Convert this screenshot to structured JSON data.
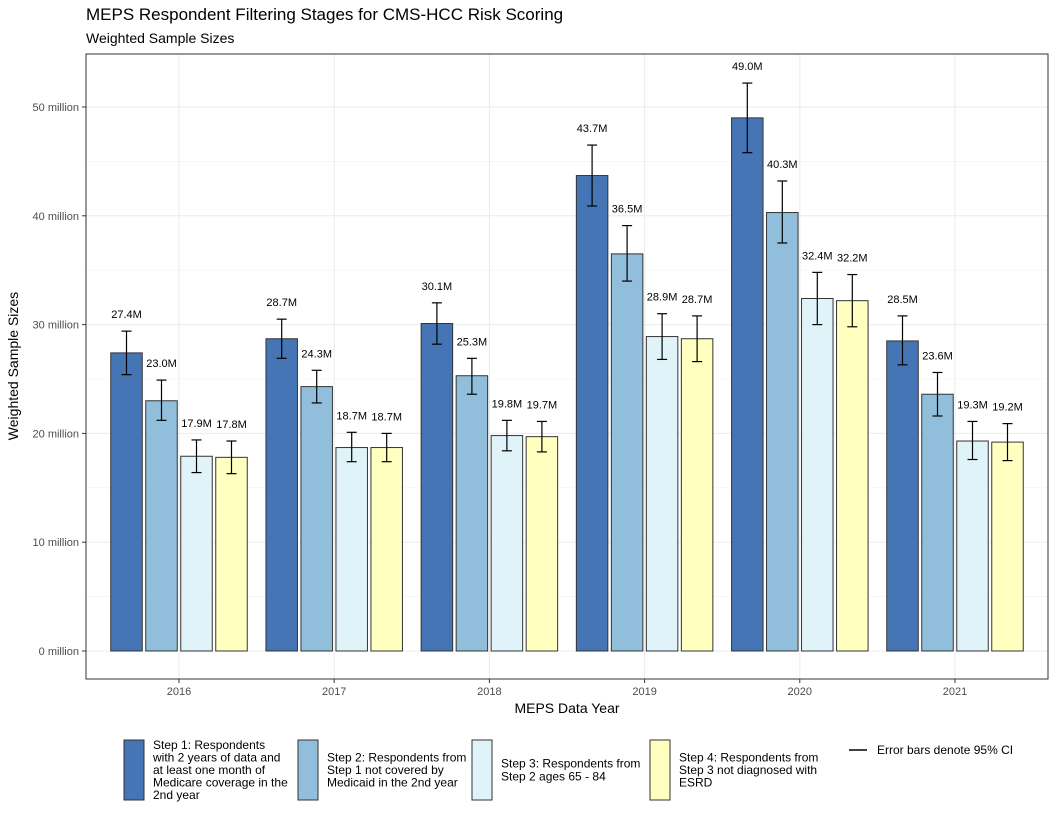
{
  "chart_data": {
    "type": "bar",
    "title": "MEPS Respondent Filtering Stages for CMS-HCC Risk Scoring",
    "subtitle": "Weighted Sample Sizes",
    "xlabel": "MEPS Data Year",
    "ylabel": "Weighted Sample Sizes",
    "categories": [
      "2016",
      "2017",
      "2018",
      "2019",
      "2020",
      "2021"
    ],
    "ylim": [
      0,
      55
    ],
    "yticks": [
      0,
      10,
      20,
      30,
      40,
      50
    ],
    "ytick_labels": [
      "0 million",
      "10 million",
      "20 million",
      "30 million",
      "40 million",
      "50 million"
    ],
    "grid": true,
    "legend_position": "bottom",
    "series": [
      {
        "name": "Step 1: Respondents with 2 years of data and at least one month of Medicare coverage in the 2nd year",
        "legend_lines": [
          "Step 1: Respondents",
          "with 2 years of data and",
          "at least one month of",
          "Medicare coverage in the",
          "2nd year"
        ],
        "color": "#4575b4",
        "values": [
          27.4,
          28.7,
          30.1,
          43.7,
          49.0,
          28.5
        ],
        "ci_low": [
          25.4,
          26.9,
          28.2,
          40.9,
          45.8,
          26.3
        ],
        "ci_high": [
          29.4,
          30.5,
          32.0,
          46.5,
          52.2,
          30.8
        ],
        "labels": [
          "27.4M",
          "28.7M",
          "30.1M",
          "43.7M",
          "49.0M",
          "28.5M"
        ]
      },
      {
        "name": "Step 2: Respondents from Step 1 not covered by Medicaid in the 2nd year",
        "legend_lines": [
          "Step 2: Respondents from",
          "Step 1 not covered by",
          "Medicaid in the 2nd year"
        ],
        "color": "#91bfdb",
        "values": [
          23.0,
          24.3,
          25.3,
          36.5,
          40.3,
          23.6
        ],
        "ci_low": [
          21.2,
          22.8,
          23.6,
          34.0,
          37.5,
          21.6
        ],
        "ci_high": [
          24.9,
          25.8,
          26.9,
          39.1,
          43.2,
          25.6
        ],
        "labels": [
          "23.0M",
          "24.3M",
          "25.3M",
          "36.5M",
          "40.3M",
          "23.6M"
        ]
      },
      {
        "name": "Step 3: Respondents from Step 2 ages 65 - 84",
        "legend_lines": [
          "Step 3: Respondents from",
          "Step 2 ages 65 - 84"
        ],
        "color": "#e0f3f8",
        "values": [
          17.9,
          18.7,
          19.8,
          28.9,
          32.4,
          19.3
        ],
        "ci_low": [
          16.4,
          17.4,
          18.4,
          26.8,
          30.0,
          17.6
        ],
        "ci_high": [
          19.4,
          20.1,
          21.2,
          31.0,
          34.8,
          21.1
        ],
        "labels": [
          "17.9M",
          "18.7M",
          "19.8M",
          "28.9M",
          "32.4M",
          "19.3M"
        ]
      },
      {
        "name": "Step 4: Respondents from Step 3 not diagnosed with ESRD",
        "legend_lines": [
          "Step 4: Respondents from",
          "Step 3 not diagnosed with",
          "ESRD"
        ],
        "color": "#ffffbf",
        "values": [
          17.8,
          18.7,
          19.7,
          28.7,
          32.2,
          19.2
        ],
        "ci_low": [
          16.3,
          17.4,
          18.3,
          26.6,
          29.8,
          17.5
        ],
        "ci_high": [
          19.3,
          20.0,
          21.1,
          30.8,
          34.6,
          20.9
        ],
        "labels": [
          "17.8M",
          "18.7M",
          "19.7M",
          "28.7M",
          "32.2M",
          "19.2M"
        ]
      }
    ],
    "errorbar_legend": "Error bars denote 95% CI"
  }
}
